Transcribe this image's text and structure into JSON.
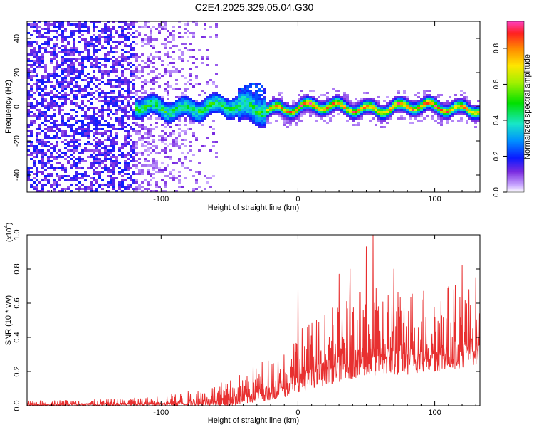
{
  "title": "C2E4.2025.329.05.04.G30",
  "chart_data": [
    {
      "type": "heatmap",
      "xlabel": "Height of straight line (km)",
      "ylabel": "Frequency (Hz)",
      "xlim": [
        -198,
        133
      ],
      "ylim": [
        -50,
        50
      ],
      "xticks": [
        -100,
        0,
        100
      ],
      "yticks": [
        -40,
        -20,
        0,
        20,
        40
      ],
      "colorbar": {
        "label": "Normalized spectral amplitude",
        "range": [
          0.0,
          0.95
        ],
        "ticks": [
          0.0,
          0.2,
          0.4,
          0.6,
          0.8
        ],
        "tick_labels": [
          "0.0",
          "0.2",
          "0.4",
          "0.6",
          "0.8"
        ]
      },
      "features": {
        "noise_region_x": [
          -198,
          -60
        ],
        "signal_band_freq_hz": 0,
        "strong_signal_x": [
          -120,
          -25
        ],
        "clean_signal_x": [
          -25,
          133
        ],
        "colors": {
          "noise": "#7a2be0",
          "band_mid": "#18e6c8",
          "band_peak": "#e61e1e"
        }
      }
    },
    {
      "type": "line",
      "xlabel": "Height of straight line (km)",
      "ylabel": "SNR (10 * v/v)",
      "scale_label": "(x10",
      "scale_exponent": "4",
      "scale_close": ")",
      "xlim": [
        -198,
        133
      ],
      "ylim": [
        0.0,
        1.0
      ],
      "xticks": [
        -100,
        0,
        100
      ],
      "yticks": [
        0.0,
        0.2,
        0.4,
        0.6,
        0.8,
        1.0
      ],
      "ytick_labels": [
        "0.0",
        "0.2",
        "0.4",
        "0.6",
        "0.8",
        "1.0"
      ],
      "line_color": "#e83030",
      "envelope": {
        "x": [
          -198,
          -160,
          -130,
          -110,
          -90,
          -70,
          -50,
          -30,
          -10,
          0,
          20,
          40,
          60,
          80,
          100,
          120,
          133
        ],
        "min": [
          0.0,
          0.0,
          0.0,
          0.0,
          0.0,
          0.0,
          0.0,
          0.02,
          0.05,
          0.08,
          0.12,
          0.16,
          0.18,
          0.18,
          0.2,
          0.22,
          0.25
        ],
        "max": [
          0.03,
          0.035,
          0.04,
          0.05,
          0.07,
          0.1,
          0.15,
          0.25,
          0.35,
          0.45,
          0.55,
          0.65,
          0.7,
          0.7,
          0.72,
          0.72,
          0.7
        ]
      },
      "spikes": [
        {
          "x": 55,
          "y": 1.0
        },
        {
          "x": 0,
          "y": 0.68
        },
        {
          "x": 50,
          "y": 0.93
        },
        {
          "x": 38,
          "y": 0.8
        },
        {
          "x": 30,
          "y": 0.77
        },
        {
          "x": 70,
          "y": 0.8
        },
        {
          "x": 120,
          "y": 0.82
        },
        {
          "x": 130,
          "y": 0.75
        }
      ]
    }
  ]
}
